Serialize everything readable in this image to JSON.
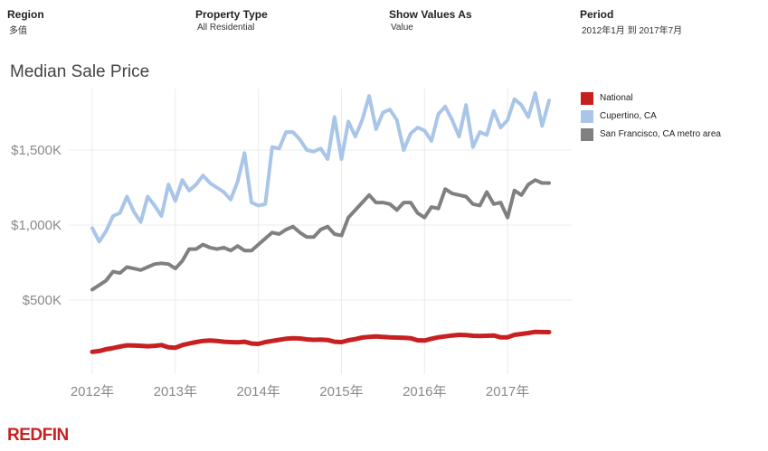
{
  "filters": {
    "region": {
      "label": "Region",
      "value": "多值"
    },
    "property_type": {
      "label": "Property Type",
      "value": "All Residential"
    },
    "show_values_as": {
      "label": "Show Values As",
      "value": "Value"
    },
    "period": {
      "label": "Period",
      "value": "2012年1月 到 2017年7月"
    }
  },
  "brand": {
    "logo_text": "REDFIN",
    "color": "#c82021"
  },
  "chart_data": {
    "type": "line",
    "title": "Median Sale Price",
    "xlabel": "",
    "ylabel": "",
    "x_start": "2012-01",
    "x_end": "2017-07",
    "x_ticks": [
      "2012年",
      "2013年",
      "2014年",
      "2015年",
      "2016年",
      "2017年"
    ],
    "y_ticks": [
      {
        "value": 500000,
        "label": "$500K"
      },
      {
        "value": 1000000,
        "label": "$1,000K"
      },
      {
        "value": 1500000,
        "label": "$1,500K"
      }
    ],
    "ylim": [
      0,
      1950000
    ],
    "grid": true,
    "legend_position": "right",
    "series": [
      {
        "name": "National",
        "color": "#c82021",
        "values": [
          155000,
          160000,
          172000,
          180000,
          190000,
          198000,
          197000,
          195000,
          192000,
          195000,
          200000,
          185000,
          182000,
          200000,
          210000,
          220000,
          228000,
          230000,
          228000,
          222000,
          220000,
          218000,
          222000,
          210000,
          208000,
          220000,
          228000,
          235000,
          242000,
          246000,
          244000,
          238000,
          235000,
          236000,
          234000,
          222000,
          220000,
          232000,
          240000,
          250000,
          255000,
          258000,
          255000,
          252000,
          250000,
          248000,
          246000,
          232000,
          230000,
          242000,
          252000,
          258000,
          264000,
          268000,
          266000,
          262000,
          260000,
          262000,
          264000,
          252000,
          252000,
          268000,
          274000,
          280000,
          288000,
          287000,
          286000
        ]
      },
      {
        "name": "Cupertino, CA",
        "color": "#a9c5e8",
        "values": [
          980000,
          890000,
          960000,
          1060000,
          1080000,
          1190000,
          1090000,
          1020000,
          1190000,
          1130000,
          1060000,
          1270000,
          1160000,
          1300000,
          1230000,
          1270000,
          1330000,
          1280000,
          1250000,
          1220000,
          1170000,
          1290000,
          1480000,
          1150000,
          1130000,
          1140000,
          1520000,
          1510000,
          1620000,
          1620000,
          1570000,
          1500000,
          1490000,
          1510000,
          1440000,
          1720000,
          1440000,
          1690000,
          1590000,
          1700000,
          1860000,
          1640000,
          1750000,
          1770000,
          1700000,
          1500000,
          1610000,
          1650000,
          1630000,
          1560000,
          1740000,
          1790000,
          1700000,
          1590000,
          1800000,
          1520000,
          1620000,
          1600000,
          1760000,
          1650000,
          1700000,
          1840000,
          1800000,
          1720000,
          1880000,
          1660000,
          1830000
        ]
      },
      {
        "name": "San Francisco, CA metro area",
        "color": "#808080",
        "values": [
          570000,
          600000,
          630000,
          690000,
          680000,
          720000,
          710000,
          700000,
          720000,
          740000,
          745000,
          740000,
          710000,
          760000,
          840000,
          840000,
          870000,
          850000,
          840000,
          850000,
          830000,
          860000,
          830000,
          830000,
          870000,
          910000,
          950000,
          940000,
          970000,
          990000,
          950000,
          920000,
          920000,
          970000,
          990000,
          940000,
          930000,
          1050000,
          1100000,
          1150000,
          1200000,
          1150000,
          1150000,
          1140000,
          1100000,
          1150000,
          1150000,
          1080000,
          1050000,
          1120000,
          1110000,
          1240000,
          1210000,
          1200000,
          1190000,
          1140000,
          1130000,
          1220000,
          1140000,
          1150000,
          1050000,
          1230000,
          1200000,
          1270000,
          1300000,
          1280000,
          1280000
        ]
      }
    ]
  }
}
